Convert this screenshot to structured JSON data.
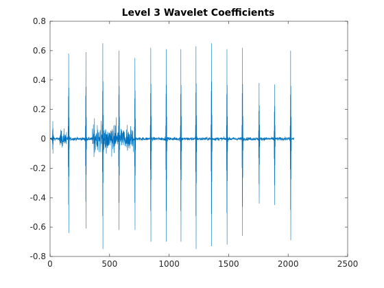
{
  "chart_data": {
    "type": "line",
    "title": "Level 3 Wavelet Coefficients",
    "xlabel": "",
    "ylabel": "",
    "xlim": [
      0,
      2500
    ],
    "ylim": [
      -0.8,
      0.8
    ],
    "x_ticks": [
      0,
      500,
      1000,
      1500,
      2000,
      2500
    ],
    "y_ticks": [
      -0.8,
      -0.6,
      -0.4,
      -0.2,
      0,
      0.2,
      0.4,
      0.6,
      0.8
    ],
    "x_tick_labels": [
      "0",
      "500",
      "1000",
      "1500",
      "2000",
      "2500"
    ],
    "y_tick_labels": [
      "-0.8",
      "-0.6",
      "-0.4",
      "-0.2",
      "0",
      "0.2",
      "0.4",
      "0.6",
      "0.8"
    ],
    "grid": false,
    "series": [
      {
        "color": "#0072BD",
        "n_points": 2048,
        "baseline_noise": 0.02,
        "spikes": [
          {
            "x": 22,
            "max": 0.12,
            "min": -0.1
          },
          {
            "x": 155,
            "max": 0.58,
            "min": -0.64
          },
          {
            "x": 300,
            "max": 0.59,
            "min": -0.61
          },
          {
            "x": 442,
            "max": 0.65,
            "min": -0.75
          },
          {
            "x": 578,
            "max": 0.6,
            "min": -0.62
          },
          {
            "x": 712,
            "max": 0.55,
            "min": -0.62
          },
          {
            "x": 845,
            "max": 0.62,
            "min": -0.7
          },
          {
            "x": 975,
            "max": 0.61,
            "min": -0.7
          },
          {
            "x": 1098,
            "max": 0.61,
            "min": -0.7
          },
          {
            "x": 1225,
            "max": 0.63,
            "min": -0.75
          },
          {
            "x": 1355,
            "max": 0.65,
            "min": -0.73
          },
          {
            "x": 1485,
            "max": 0.61,
            "min": -0.72
          },
          {
            "x": 1615,
            "max": 0.62,
            "min": -0.66
          },
          {
            "x": 1755,
            "max": 0.38,
            "min": -0.44
          },
          {
            "x": 1885,
            "max": 0.37,
            "min": -0.45
          },
          {
            "x": 2020,
            "max": 0.6,
            "min": -0.69
          }
        ],
        "burst_regions": [
          {
            "from": 80,
            "to": 140,
            "amp": 0.1
          },
          {
            "from": 350,
            "to": 700,
            "amp": 0.15
          }
        ]
      }
    ],
    "colors": {
      "axis": "#262626",
      "line": "#0072BD"
    }
  }
}
